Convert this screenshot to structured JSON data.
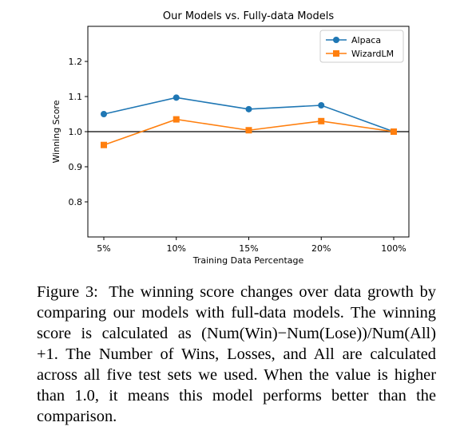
{
  "chart_data": {
    "type": "line",
    "title": "Our Models vs. Fully-data Models",
    "xlabel": "Training Data Percentage",
    "ylabel": "Winning Score",
    "categories": [
      "5%",
      "10%",
      "15%",
      "20%",
      "100%"
    ],
    "series": [
      {
        "name": "Alpaca",
        "values": [
          1.05,
          1.097,
          1.064,
          1.075,
          1.0
        ],
        "color": "#1f77b4",
        "marker": "circle"
      },
      {
        "name": "WizardLM",
        "values": [
          0.962,
          1.035,
          1.004,
          1.03,
          1.0
        ],
        "color": "#ff7f0e",
        "marker": "square"
      }
    ],
    "ylim": [
      0.7,
      1.3
    ],
    "yticks": [
      0.8,
      0.9,
      1.0,
      1.1,
      1.2
    ],
    "ytick_labels": [
      "0.8",
      "0.9",
      "1.0",
      "1.1",
      "1.2"
    ],
    "reference_line": 1.0,
    "grid": false,
    "legend_position": "top-right"
  },
  "caption": {
    "label": "Figure 3:",
    "text": "The winning score changes over data growth by comparing our models with full-data models. The winning score is calculated as (Num(Win)−Num(Lose))/Num(All) +1. The Number of Wins, Losses, and All are calculated across all five test sets we used. When the value is higher than 1.0, it means this model performs better than the comparison."
  }
}
